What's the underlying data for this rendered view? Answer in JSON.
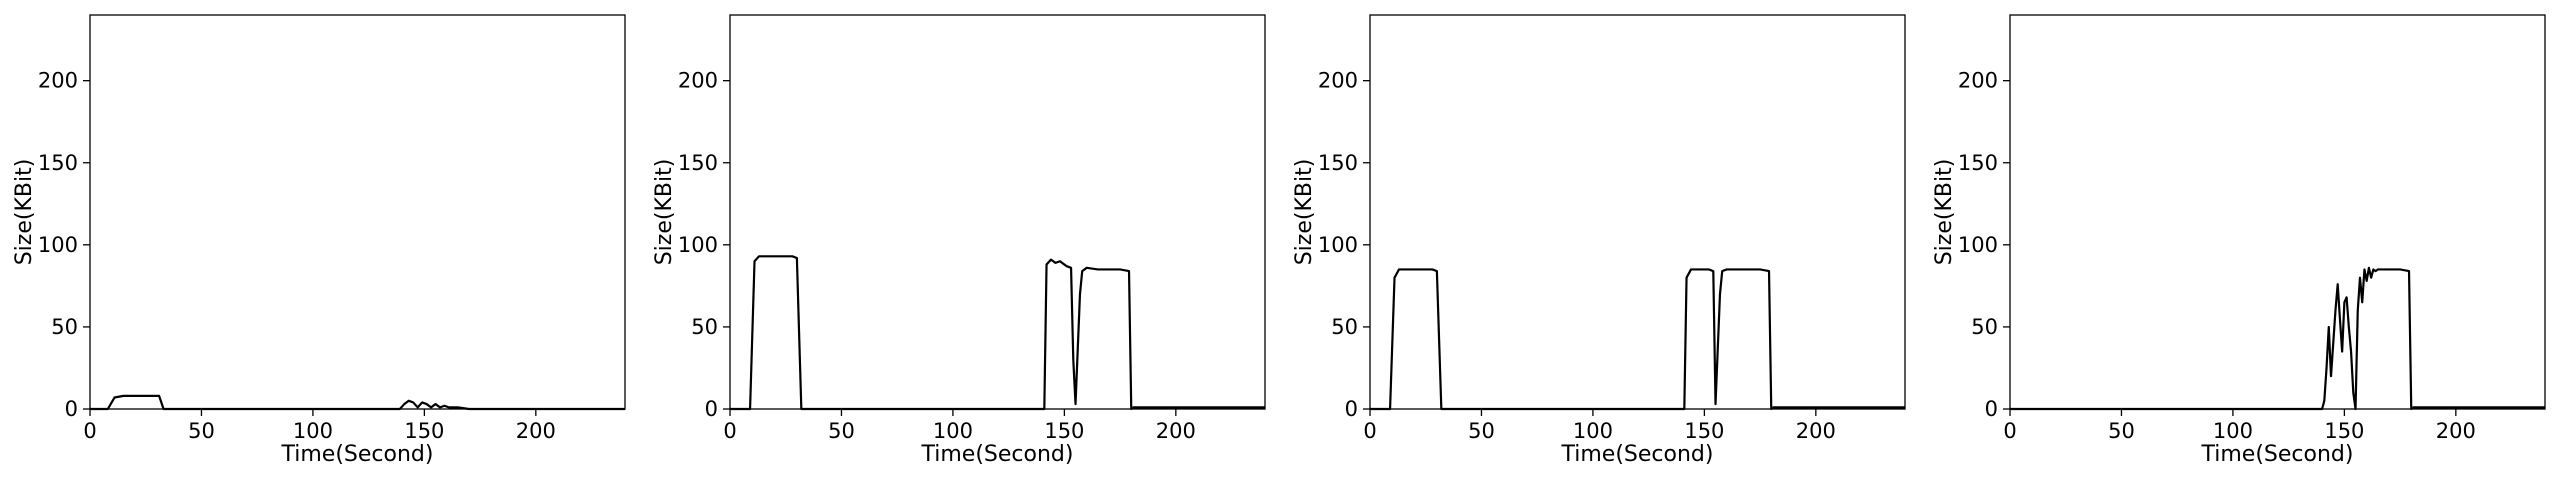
{
  "chart_data": [
    {
      "type": "line",
      "xlabel": "Time(Second)",
      "ylabel": "Size(KBit)",
      "xlim": [
        0,
        240
      ],
      "ylim": [
        0,
        240
      ],
      "xticks": [
        0,
        50,
        100,
        150,
        200
      ],
      "yticks": [
        0,
        50,
        100,
        150,
        200
      ],
      "grid": false,
      "line_color": "#000000",
      "series": [
        {
          "x": [
            0,
            8,
            11,
            15,
            20,
            25,
            28,
            31,
            33,
            40,
            60,
            80,
            100,
            120,
            139,
            141,
            143,
            145,
            147,
            149,
            151,
            153,
            155,
            157,
            159,
            161,
            165,
            170,
            180,
            200,
            220,
            240
          ],
          "y": [
            0,
            0,
            7,
            8,
            8,
            8,
            8,
            8,
            0,
            0,
            0,
            0,
            0,
            0,
            0,
            3,
            5,
            4,
            1,
            4,
            3,
            1,
            3,
            1,
            2,
            1,
            1,
            0,
            0,
            0,
            0,
            0
          ]
        }
      ]
    },
    {
      "type": "line",
      "xlabel": "Time(Second)",
      "ylabel": "Size(KBit)",
      "xlim": [
        0,
        240
      ],
      "ylim": [
        0,
        240
      ],
      "xticks": [
        0,
        50,
        100,
        150,
        200
      ],
      "yticks": [
        0,
        50,
        100,
        150,
        200
      ],
      "grid": false,
      "line_color": "#000000",
      "series": [
        {
          "x": [
            0,
            9,
            11,
            13,
            20,
            28,
            30,
            32,
            40,
            60,
            80,
            100,
            120,
            141,
            142,
            144,
            146,
            148,
            151,
            153,
            154,
            155,
            157,
            158,
            160,
            165,
            170,
            175,
            179,
            180,
            181,
            200,
            220,
            240
          ],
          "y": [
            0,
            0,
            90,
            93,
            93,
            93,
            92,
            0,
            0,
            0,
            0,
            0,
            0,
            0,
            88,
            91,
            89,
            90,
            87,
            86,
            30,
            3,
            70,
            84,
            86,
            85,
            85,
            85,
            84,
            0,
            1,
            1,
            1,
            1
          ]
        }
      ]
    },
    {
      "type": "line",
      "xlabel": "Time(Second)",
      "ylabel": "Size(KBit)",
      "xlim": [
        0,
        240
      ],
      "ylim": [
        0,
        240
      ],
      "xticks": [
        0,
        50,
        100,
        150,
        200
      ],
      "yticks": [
        0,
        50,
        100,
        150,
        200
      ],
      "grid": false,
      "line_color": "#000000",
      "series": [
        {
          "x": [
            0,
            9,
            11,
            13,
            20,
            28,
            30,
            32,
            40,
            60,
            80,
            100,
            120,
            141,
            142,
            144,
            148,
            152,
            154,
            155,
            157,
            158,
            160,
            165,
            170,
            175,
            179,
            180,
            181,
            200,
            220,
            240
          ],
          "y": [
            0,
            0,
            80,
            85,
            85,
            85,
            84,
            0,
            0,
            0,
            0,
            0,
            0,
            0,
            80,
            85,
            85,
            85,
            84,
            3,
            70,
            84,
            85,
            85,
            85,
            85,
            84,
            0,
            1,
            1,
            1,
            1
          ]
        }
      ]
    },
    {
      "type": "line",
      "xlabel": "Time(Second)",
      "ylabel": "Size(KBit)",
      "xlim": [
        0,
        240
      ],
      "ylim": [
        0,
        240
      ],
      "xticks": [
        0,
        50,
        100,
        150,
        200
      ],
      "yticks": [
        0,
        50,
        100,
        150,
        200
      ],
      "grid": false,
      "line_color": "#000000",
      "series": [
        {
          "x": [
            0,
            20,
            40,
            60,
            80,
            100,
            120,
            140,
            141,
            142,
            143,
            144,
            146,
            147,
            148,
            149,
            150,
            151,
            152,
            153,
            154,
            155,
            156,
            157,
            158,
            159,
            160,
            161,
            162,
            163,
            164,
            165,
            170,
            175,
            179,
            180,
            181,
            200,
            220,
            240
          ],
          "y": [
            0,
            0,
            0,
            0,
            0,
            0,
            0,
            0,
            5,
            25,
            50,
            20,
            60,
            76,
            55,
            35,
            65,
            68,
            50,
            35,
            10,
            0,
            60,
            80,
            65,
            85,
            78,
            86,
            80,
            85,
            84,
            85,
            85,
            85,
            84,
            0,
            1,
            1,
            1,
            1
          ]
        }
      ]
    }
  ]
}
